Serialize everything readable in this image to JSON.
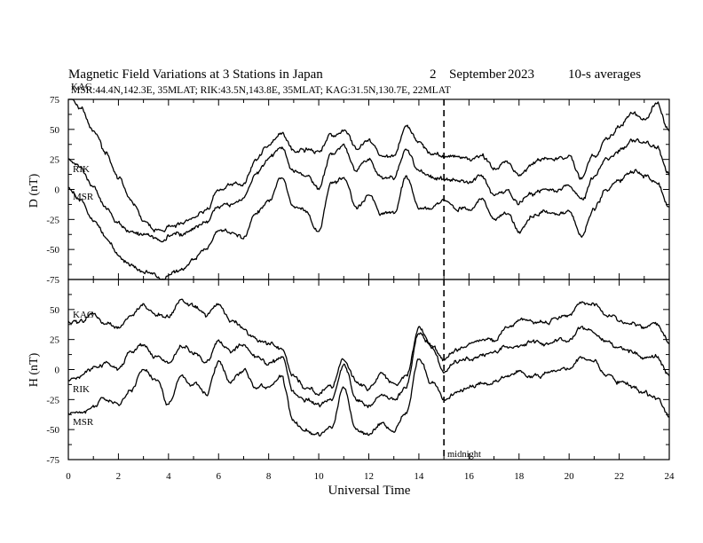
{
  "title": "Magnetic Field Variations at 3 Stations in Japan",
  "title_day": "2",
  "title_month": "September",
  "title_year": "2023",
  "title_note": "10-s averages",
  "subtitle": "MSR:44.4N,142.3E, 35MLAT;  RIK:43.5N,143.8E, 35MLAT;  KAG:31.5N,130.7E, 22MLAT",
  "xlabel": "Universal Time",
  "midnight_label": "midnight",
  "colors": {
    "trace": "#000000",
    "background": "#ffffff"
  },
  "chart_data": [
    {
      "type": "line",
      "panel": "D",
      "ylabel": "D (nT)",
      "xlim": [
        0,
        24
      ],
      "ylim": [
        -75,
        75
      ],
      "xticks": [
        0,
        2,
        4,
        6,
        8,
        10,
        12,
        14,
        16,
        18,
        20,
        22,
        24
      ],
      "yticks": [
        -75,
        -50,
        -25,
        0,
        25,
        50,
        75
      ],
      "ytick_labels": [
        "-75",
        "-50",
        "-25",
        "0",
        "25",
        "50",
        "75"
      ],
      "midnight_ut": 15,
      "series": [
        {
          "name": "KAG",
          "x": [
            0,
            0.5,
            1,
            1.5,
            2,
            2.5,
            3,
            3.5,
            3.8,
            4,
            4.5,
            5,
            5.5,
            6,
            6.5,
            7,
            7.5,
            8,
            8.5,
            9,
            9.5,
            10,
            10.5,
            11,
            11.5,
            12,
            12.5,
            13,
            13.5,
            14,
            14.5,
            15,
            15.5,
            16,
            16.5,
            17,
            17.5,
            18,
            18.5,
            19,
            19.5,
            20,
            20.5,
            21,
            21.5,
            22,
            22.5,
            23,
            23.5,
            24
          ],
          "values": [
            78,
            68,
            50,
            30,
            10,
            -10,
            -25,
            -35,
            -37,
            -32,
            -28,
            -22,
            -18,
            0,
            5,
            5,
            25,
            38,
            45,
            32,
            33,
            30,
            45,
            50,
            35,
            42,
            28,
            28,
            52,
            38,
            30,
            28,
            28,
            25,
            28,
            18,
            22,
            12,
            20,
            25,
            25,
            28,
            10,
            28,
            42,
            52,
            62,
            60,
            72,
            48
          ]
        },
        {
          "name": "RIK",
          "x": [
            0,
            0.5,
            1,
            1.5,
            2,
            2.5,
            3,
            3.5,
            3.8,
            4,
            4.5,
            5,
            5.5,
            6,
            6.5,
            7,
            7.5,
            8,
            8.5,
            9,
            9.5,
            10,
            10.5,
            11,
            11.5,
            12,
            12.5,
            13,
            13.5,
            14,
            14.5,
            15,
            15.5,
            16,
            16.5,
            17,
            17.5,
            18,
            18.5,
            19,
            19.5,
            20,
            20.5,
            21,
            21.5,
            22,
            22.5,
            23,
            23.5,
            24
          ],
          "values": [
            25,
            18,
            0,
            -15,
            -28,
            -35,
            -38,
            -42,
            -45,
            -40,
            -38,
            -32,
            -28,
            -15,
            -12,
            -8,
            12,
            25,
            35,
            15,
            12,
            0,
            30,
            35,
            15,
            25,
            10,
            10,
            35,
            15,
            10,
            8,
            8,
            5,
            12,
            -5,
            0,
            -12,
            -5,
            0,
            0,
            5,
            -10,
            10,
            25,
            32,
            40,
            38,
            35,
            12
          ]
        },
        {
          "name": "MSR",
          "x": [
            0,
            0.5,
            1,
            1.5,
            2,
            2.5,
            3,
            3.5,
            3.8,
            4,
            4.5,
            5,
            5.5,
            6,
            6.5,
            7,
            7.5,
            8,
            8.5,
            9,
            9.5,
            10,
            10.5,
            11,
            11.5,
            12,
            12.5,
            13,
            13.5,
            14,
            14.5,
            15,
            15.5,
            16,
            16.5,
            17,
            17.5,
            18,
            18.5,
            19,
            19.5,
            20,
            20.5,
            21,
            21.5,
            22,
            22.5,
            23,
            23.5,
            24
          ],
          "values": [
            2,
            -10,
            -25,
            -40,
            -55,
            -62,
            -68,
            -72,
            -75,
            -70,
            -66,
            -58,
            -50,
            -35,
            -35,
            -40,
            -20,
            -10,
            10,
            -15,
            -18,
            -35,
            5,
            10,
            -15,
            -5,
            -20,
            -20,
            10,
            -15,
            -15,
            -10,
            -15,
            -18,
            -8,
            -25,
            -20,
            -35,
            -22,
            -18,
            -20,
            -18,
            -40,
            -15,
            0,
            8,
            15,
            12,
            5,
            -15
          ]
        }
      ]
    },
    {
      "type": "line",
      "panel": "H",
      "ylabel": "H (nT)",
      "xlim": [
        0,
        24
      ],
      "ylim": [
        -75,
        75
      ],
      "xticks": [
        0,
        2,
        4,
        6,
        8,
        10,
        12,
        14,
        16,
        18,
        20,
        22,
        24
      ],
      "yticks": [
        -75,
        -50,
        -25,
        0,
        25,
        50
      ],
      "ytick_labels": [
        "-75",
        "-50",
        "-25",
        "0",
        "25",
        "50"
      ],
      "midnight_ut": 15,
      "series": [
        {
          "name": "KAG",
          "x": [
            0,
            0.5,
            1,
            1.5,
            2,
            2.5,
            3,
            3.5,
            4,
            4.5,
            5,
            5.5,
            6,
            6.5,
            7,
            7.5,
            8,
            8.5,
            9,
            9.5,
            10,
            10.5,
            11,
            11.5,
            12,
            12.5,
            13,
            13.5,
            14,
            14.5,
            15,
            15.5,
            16,
            16.5,
            17,
            17.5,
            18,
            18.5,
            19,
            19.5,
            20,
            20.5,
            21,
            21.5,
            22,
            22.5,
            23,
            23.5,
            24
          ],
          "values": [
            40,
            40,
            45,
            38,
            35,
            45,
            55,
            45,
            45,
            58,
            52,
            45,
            52,
            40,
            35,
            25,
            20,
            18,
            -5,
            -15,
            -20,
            -15,
            8,
            -10,
            -15,
            -5,
            -12,
            -5,
            35,
            20,
            8,
            15,
            20,
            25,
            25,
            35,
            40,
            40,
            38,
            42,
            45,
            58,
            55,
            45,
            40,
            38,
            35,
            38,
            22
          ]
        },
        {
          "name": "RIK",
          "x": [
            0,
            0.5,
            1,
            1.5,
            2,
            2.5,
            3,
            3.5,
            4,
            4.5,
            5,
            5.5,
            6,
            6.5,
            7,
            7.5,
            8,
            8.5,
            9,
            9.5,
            10,
            10.5,
            11,
            11.5,
            12,
            12.5,
            13,
            13.5,
            14,
            14.5,
            15,
            15.5,
            16,
            16.5,
            17,
            17.5,
            18,
            18.5,
            19,
            19.5,
            20,
            20.5,
            21,
            21.5,
            22,
            22.5,
            23,
            23.5,
            24
          ],
          "values": [
            -10,
            -5,
            0,
            5,
            0,
            15,
            20,
            10,
            5,
            20,
            15,
            5,
            25,
            15,
            20,
            10,
            5,
            10,
            -20,
            -25,
            -30,
            -25,
            5,
            -25,
            -30,
            -20,
            -25,
            -15,
            30,
            20,
            -2,
            5,
            10,
            12,
            15,
            18,
            20,
            22,
            20,
            25,
            25,
            35,
            30,
            22,
            18,
            15,
            12,
            10,
            -5
          ]
        },
        {
          "name": "MSR",
          "x": [
            0,
            0.5,
            1,
            1.5,
            2,
            2.5,
            3,
            3.5,
            4,
            4.5,
            5,
            5.5,
            6,
            6.5,
            7,
            7.5,
            8,
            8.5,
            9,
            9.5,
            10,
            10.5,
            11,
            11.5,
            12,
            12.5,
            13,
            13.5,
            14,
            14.5,
            15,
            15.5,
            16,
            16.5,
            17,
            17.5,
            18,
            18.5,
            19,
            19.5,
            20,
            20.5,
            21,
            21.5,
            22,
            22.5,
            23,
            23.5,
            24
          ],
          "values": [
            -37,
            -35,
            -30,
            -25,
            -30,
            -15,
            0,
            -10,
            -30,
            -5,
            -12,
            -20,
            5,
            -10,
            0,
            -15,
            -15,
            -5,
            -45,
            -50,
            -55,
            -50,
            -15,
            -50,
            -55,
            -45,
            -50,
            -35,
            10,
            -10,
            -25,
            -20,
            -15,
            -12,
            -10,
            -5,
            0,
            -5,
            -5,
            0,
            0,
            10,
            5,
            -5,
            -10,
            -15,
            -20,
            -25,
            -40
          ]
        }
      ]
    }
  ]
}
